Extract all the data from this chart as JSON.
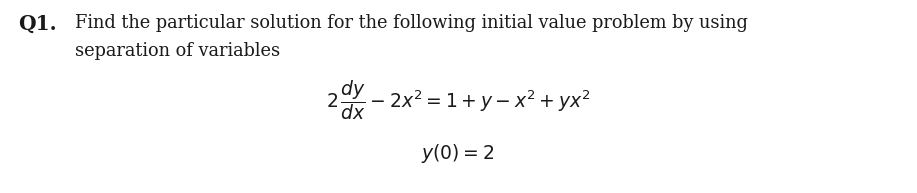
{
  "background_color": "#ffffff",
  "fig_width": 9.17,
  "fig_height": 1.93,
  "dpi": 100,
  "text_color": "#1a1a1a",
  "q_label": "Q1.",
  "line1": "Find the particular solution for the following initial value problem by using",
  "line2": "separation of variables",
  "fontsize_body": 12.8,
  "fontsize_eq": 13.5,
  "fontsize_q": 14.5
}
